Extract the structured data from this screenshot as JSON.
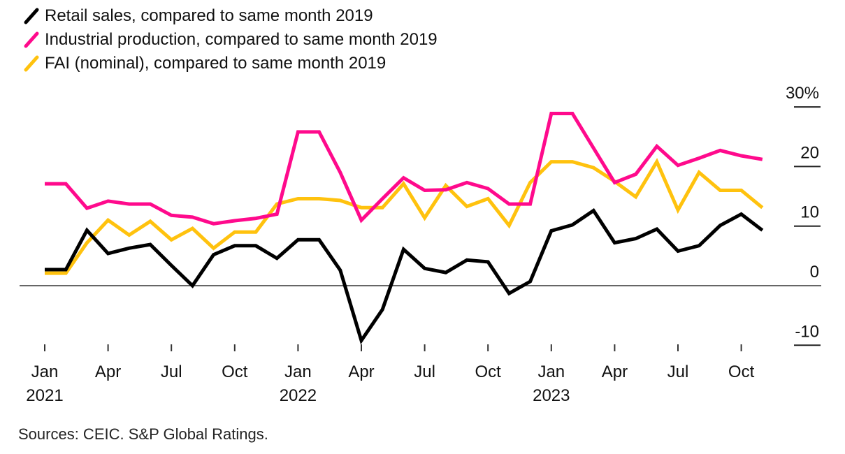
{
  "chart_data": {
    "type": "line",
    "title": "",
    "xlabel": "",
    "ylabel": "",
    "y_unit": "%",
    "ylim": [
      -10,
      30
    ],
    "yticks": [
      {
        "value": 30,
        "label": "30%"
      },
      {
        "value": 20,
        "label": "20"
      },
      {
        "value": 10,
        "label": "10"
      },
      {
        "value": 0,
        "label": "0"
      },
      {
        "value": -10,
        "label": "-10"
      }
    ],
    "x": [
      "2021-01",
      "2021-02",
      "2021-03",
      "2021-04",
      "2021-05",
      "2021-06",
      "2021-07",
      "2021-08",
      "2021-09",
      "2021-10",
      "2021-11",
      "2021-12",
      "2022-01",
      "2022-02",
      "2022-03",
      "2022-04",
      "2022-05",
      "2022-06",
      "2022-07",
      "2022-08",
      "2022-09",
      "2022-10",
      "2022-11",
      "2022-12",
      "2023-01",
      "2023-02",
      "2023-03",
      "2023-04",
      "2023-05",
      "2023-06",
      "2023-07",
      "2023-08",
      "2023-09",
      "2023-10",
      "2023-11"
    ],
    "xticks": [
      {
        "index": 0,
        "label": "Jan",
        "sublabel": "2021"
      },
      {
        "index": 3,
        "label": "Apr",
        "sublabel": ""
      },
      {
        "index": 6,
        "label": "Jul",
        "sublabel": ""
      },
      {
        "index": 9,
        "label": "Oct",
        "sublabel": ""
      },
      {
        "index": 12,
        "label": "Jan",
        "sublabel": "2022"
      },
      {
        "index": 15,
        "label": "Apr",
        "sublabel": ""
      },
      {
        "index": 18,
        "label": "Jul",
        "sublabel": ""
      },
      {
        "index": 21,
        "label": "Oct",
        "sublabel": ""
      },
      {
        "index": 24,
        "label": "Jan",
        "sublabel": "2023"
      },
      {
        "index": 27,
        "label": "Apr",
        "sublabel": ""
      },
      {
        "index": 30,
        "label": "Jul",
        "sublabel": ""
      },
      {
        "index": 33,
        "label": "Oct",
        "sublabel": ""
      }
    ],
    "series": [
      {
        "name": "Retail sales, compared to same month 2019",
        "color": "#000000",
        "values": [
          2.7,
          2.7,
          9.3,
          5.4,
          6.3,
          6.9,
          3.4,
          0.0,
          5.2,
          6.7,
          6.7,
          4.6,
          7.7,
          7.7,
          2.6,
          -9.2,
          -4.0,
          6.1,
          2.9,
          2.2,
          4.3,
          4.0,
          -1.3,
          0.7,
          9.2,
          10.2,
          12.6,
          7.2,
          7.9,
          9.5,
          5.8,
          6.7,
          10.1,
          12.0,
          9.3
        ]
      },
      {
        "name": "Industrial production, compared to same month 2019",
        "color": "#ff0a8c",
        "values": [
          17.1,
          17.1,
          13.0,
          14.2,
          13.7,
          13.7,
          11.8,
          11.5,
          10.4,
          10.9,
          11.3,
          12.0,
          25.8,
          25.8,
          19.0,
          11.0,
          14.6,
          18.1,
          16.0,
          16.1,
          17.3,
          16.3,
          13.7,
          13.7,
          28.9,
          28.9,
          23.1,
          17.3,
          18.7,
          23.4,
          20.2,
          21.4,
          22.7,
          21.8,
          21.2
        ]
      },
      {
        "name": "FAI (nominal), compared to same month 2019",
        "color": "#ffc20e",
        "values": [
          2.1,
          2.1,
          7.2,
          11.0,
          8.5,
          10.8,
          7.7,
          9.6,
          6.3,
          9.0,
          9.0,
          13.7,
          14.6,
          14.6,
          14.3,
          13.1,
          13.1,
          17.1,
          11.4,
          16.8,
          13.3,
          14.6,
          10.1,
          17.3,
          20.8,
          20.8,
          19.8,
          17.5,
          14.9,
          20.8,
          12.7,
          19.0,
          16.0,
          16.0,
          13.1
        ]
      }
    ],
    "legend_position": "top-left",
    "grid": false,
    "source": "Sources: CEIC. S&P Global Ratings."
  }
}
